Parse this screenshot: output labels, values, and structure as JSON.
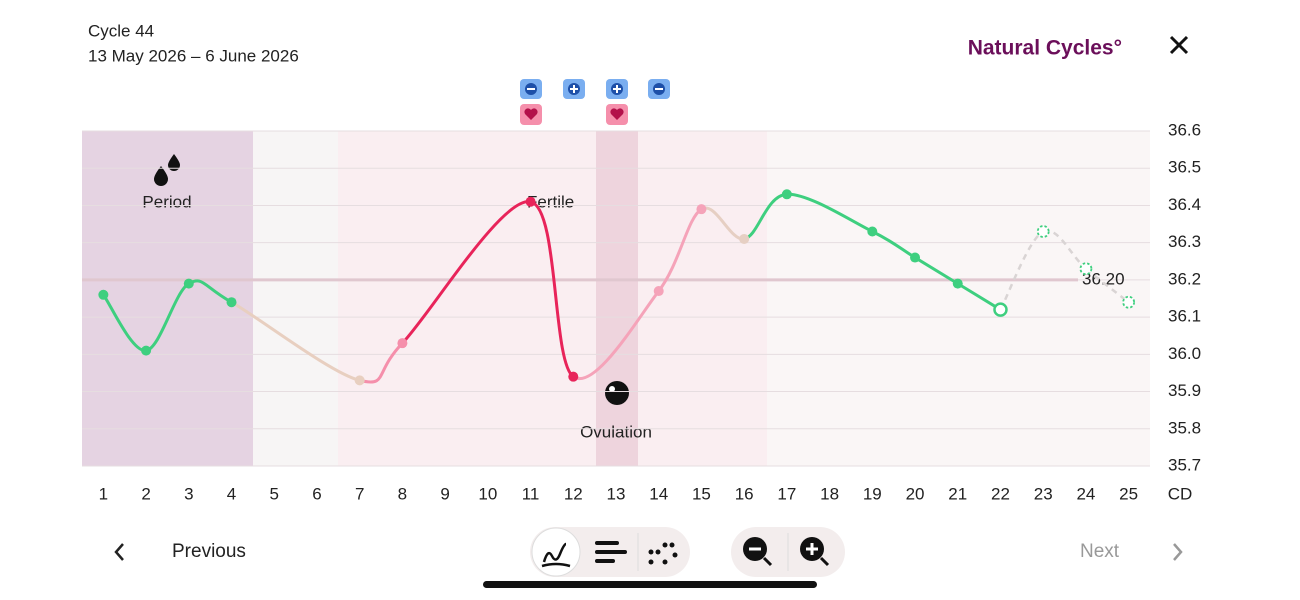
{
  "header": {
    "cycle": "Cycle 44",
    "dates": "13 May 2026 – 6 June 2026",
    "brand": "Natural Cycles°"
  },
  "chart_data": {
    "type": "line",
    "categories": [
      1,
      2,
      3,
      4,
      5,
      6,
      7,
      8,
      9,
      10,
      11,
      12,
      13,
      14,
      15,
      16,
      17,
      18,
      19,
      20,
      21,
      22,
      23,
      24,
      25
    ],
    "x_unit": "CD",
    "values": [
      36.16,
      36.01,
      36.19,
      36.14,
      null,
      null,
      35.93,
      36.03,
      null,
      null,
      36.41,
      35.94,
      null,
      36.17,
      36.39,
      36.31,
      36.43,
      null,
      36.33,
      36.26,
      36.19,
      36.12,
      null,
      null,
      null
    ],
    "point_colors": [
      "#3ecf7f",
      "#3ecf7f",
      "#3ecf7f",
      "#3ecf7f",
      null,
      null,
      "#e8cfc0",
      "#f58fab",
      null,
      null,
      "#e8245a",
      "#e8245a",
      null,
      "#f5a3b9",
      "#f5a3b9",
      "#e6cfc3",
      "#3ecf7f",
      null,
      "#3ecf7f",
      "#3ecf7f",
      "#3ecf7f",
      "#3ecf7f",
      null,
      null,
      null
    ],
    "predicted": [
      null,
      null,
      null,
      null,
      null,
      null,
      null,
      null,
      null,
      null,
      null,
      null,
      null,
      null,
      null,
      null,
      null,
      null,
      null,
      null,
      null,
      null,
      36.33,
      36.23,
      36.14
    ],
    "predicted_color": "#3ecf7f",
    "coverline": {
      "value": 36.2,
      "label": "36.20"
    },
    "annotations": {
      "period": "Period",
      "fertile": "Fertile",
      "ovulation": "Ovulation"
    },
    "ylim": [
      35.7,
      36.6
    ],
    "yticks": [
      36.6,
      36.5,
      36.4,
      36.3,
      {
        "value": 36.2,
        "label": "36.2"
      },
      36.1,
      {
        "value": 36,
        "label": "36.0"
      },
      35.9,
      35.8,
      35.7
    ],
    "grid": true
  },
  "nav": {
    "previous": "Previous",
    "next": "Next"
  }
}
